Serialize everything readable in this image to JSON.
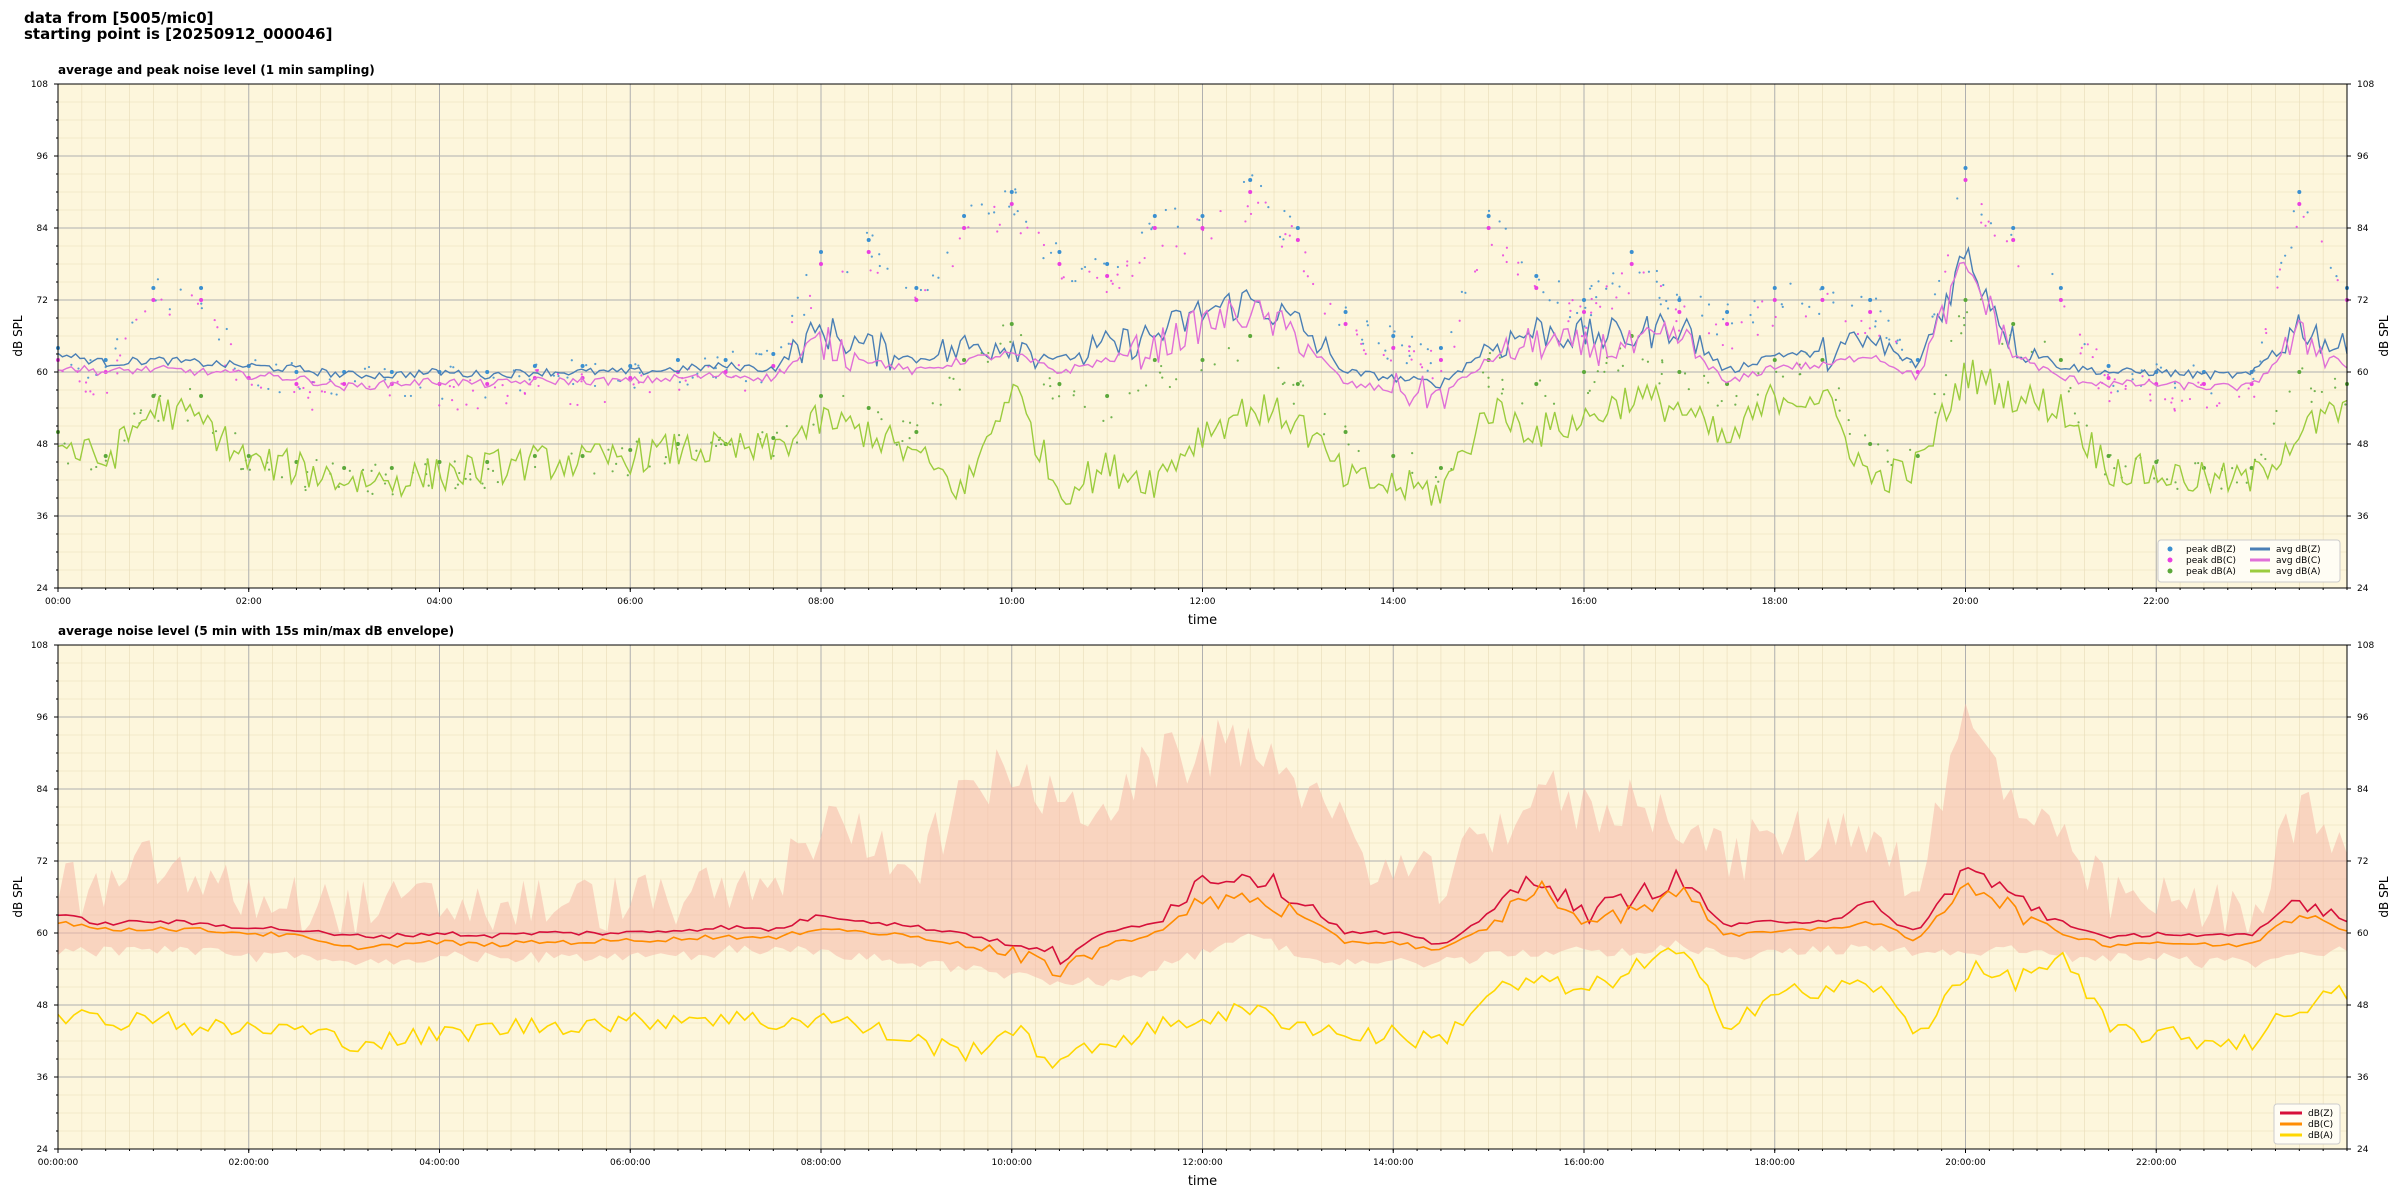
{
  "header": {
    "line1": "data from [5005/mic0]",
    "line2": "starting point is [20250912_000046]"
  },
  "colors": {
    "background": "#fdf6dc",
    "peak_z": "#3a8fd0",
    "peak_c": "#ea3fe0",
    "peak_a": "#5ba83a",
    "avg_z": "#4a7fb5",
    "avg_c": "#e070d8",
    "avg_a": "#9bcc3e",
    "z_5min": "#d6103a",
    "c_5min": "#ff8c00",
    "a_5min": "#ffd700",
    "envelope": "#f5b8a8"
  },
  "chart_data": [
    {
      "type": "line",
      "title": "average and peak noise level (1 min sampling)",
      "xlabel": "time",
      "ylabel": "dB SPL",
      "ylim": [
        24,
        108
      ],
      "yticks": [
        24,
        36,
        48,
        60,
        72,
        84,
        96,
        108
      ],
      "xlim_hours": [
        0,
        24
      ],
      "xticks": [
        "00:00",
        "02:00",
        "04:00",
        "06:00",
        "08:00",
        "10:00",
        "12:00",
        "14:00",
        "16:00",
        "18:00",
        "20:00",
        "22:00"
      ],
      "grid": true,
      "legend_position": "bottom-right",
      "x_hours": [
        0,
        0.5,
        1,
        1.5,
        2,
        2.5,
        3,
        3.5,
        4,
        4.5,
        5,
        5.5,
        6,
        6.5,
        7,
        7.5,
        8,
        8.5,
        9,
        9.5,
        10,
        10.5,
        11,
        11.5,
        12,
        12.5,
        13,
        13.5,
        14,
        14.5,
        15,
        15.5,
        16,
        16.5,
        17,
        17.5,
        18,
        18.5,
        19,
        19.5,
        20,
        20.5,
        21,
        21.5,
        22,
        22.5,
        23,
        23.5,
        24
      ],
      "series": [
        {
          "name": "peak dB(Z)",
          "kind": "scatter",
          "values": [
            64,
            62,
            74,
            74,
            61,
            60,
            60,
            60,
            60,
            60,
            61,
            61,
            61,
            62,
            62,
            63,
            80,
            82,
            74,
            86,
            90,
            80,
            78,
            86,
            86,
            92,
            84,
            70,
            66,
            64,
            86,
            76,
            72,
            80,
            72,
            70,
            74,
            74,
            72,
            62,
            94,
            84,
            74,
            61,
            60,
            60,
            60,
            90,
            74
          ]
        },
        {
          "name": "peak dB(C)",
          "kind": "scatter",
          "values": [
            62,
            60,
            72,
            72,
            59,
            58,
            58,
            58,
            58,
            58,
            59,
            59,
            59,
            60,
            60,
            61,
            78,
            80,
            72,
            84,
            88,
            78,
            76,
            84,
            84,
            90,
            82,
            68,
            64,
            62,
            84,
            74,
            70,
            78,
            70,
            68,
            72,
            72,
            70,
            60,
            92,
            82,
            72,
            59,
            58,
            58,
            58,
            88,
            72
          ]
        },
        {
          "name": "peak dB(A)",
          "kind": "scatter",
          "values": [
            50,
            46,
            56,
            56,
            46,
            45,
            44,
            44,
            45,
            45,
            46,
            46,
            47,
            48,
            48,
            49,
            56,
            54,
            50,
            62,
            68,
            58,
            56,
            62,
            62,
            66,
            58,
            50,
            46,
            44,
            62,
            58,
            60,
            66,
            60,
            58,
            62,
            62,
            48,
            46,
            72,
            68,
            62,
            46,
            45,
            44,
            44,
            60,
            58
          ]
        },
        {
          "name": "avg dB(Z)",
          "kind": "line",
          "values": [
            63,
            61.5,
            62,
            61.5,
            61,
            60.5,
            59.5,
            59.5,
            60,
            59.5,
            60,
            60,
            60,
            60.5,
            61,
            60.5,
            67,
            64,
            62,
            64,
            65,
            62,
            64,
            66,
            70,
            72,
            68,
            60,
            59,
            58,
            64,
            67,
            66,
            66,
            68,
            60,
            63,
            63,
            65,
            61,
            80,
            65,
            61,
            60,
            60,
            59.5,
            59.5,
            68,
            63
          ]
        },
        {
          "name": "avg dB(C)",
          "kind": "line",
          "values": [
            61,
            60,
            60.5,
            60,
            59.5,
            59,
            57.5,
            58,
            58.5,
            58,
            58.5,
            58.5,
            58.5,
            59,
            59.5,
            59,
            65,
            62,
            60,
            62,
            63,
            60,
            62,
            64,
            68,
            70,
            66,
            58,
            57,
            56,
            62,
            65,
            64,
            64,
            66,
            58,
            61,
            61,
            63,
            59,
            78,
            63,
            59,
            58,
            58,
            57.5,
            57.5,
            66,
            61
          ]
        },
        {
          "name": "avg dB(A)",
          "kind": "line",
          "values": [
            48,
            45,
            54,
            52,
            45,
            44,
            42,
            42,
            43,
            44,
            45,
            45,
            46,
            47,
            47,
            47,
            52,
            50,
            46,
            40,
            58,
            40,
            44,
            42,
            50,
            54,
            52,
            42,
            41,
            40,
            54,
            50,
            52,
            56,
            54,
            48,
            56,
            56,
            42,
            44,
            60,
            56,
            54,
            44,
            43,
            42,
            42,
            50,
            54
          ]
        }
      ],
      "legend": [
        "peak dB(Z)",
        "peak dB(C)",
        "peak dB(A)",
        "avg dB(Z)",
        "avg dB(C)",
        "avg dB(A)"
      ]
    },
    {
      "type": "line",
      "title": "average noise level (5 min with 15s min/max dB envelope)",
      "xlabel": "time",
      "ylabel": "dB SPL",
      "ylim": [
        24,
        108
      ],
      "yticks": [
        24,
        36,
        48,
        60,
        72,
        84,
        96,
        108
      ],
      "xlim_hours": [
        0,
        24
      ],
      "xticks": [
        "00:00:00",
        "02:00:00",
        "04:00:00",
        "06:00:00",
        "08:00:00",
        "10:00:00",
        "12:00:00",
        "14:00:00",
        "16:00:00",
        "18:00:00",
        "20:00:00",
        "22:00:00"
      ],
      "grid": true,
      "legend_position": "bottom-right",
      "x_hours": [
        0,
        0.5,
        1,
        1.5,
        2,
        2.5,
        3,
        3.5,
        4,
        4.5,
        5,
        5.5,
        6,
        6.5,
        7,
        7.5,
        8,
        8.5,
        9,
        9.5,
        10,
        10.5,
        11,
        11.5,
        12,
        12.5,
        13,
        13.5,
        14,
        14.5,
        15,
        15.5,
        16,
        16.5,
        17,
        17.5,
        18,
        18.5,
        19,
        19.5,
        20,
        20.5,
        21,
        21.5,
        22,
        22.5,
        23,
        23.5,
        24
      ],
      "envelope": {
        "min": [
          58,
          58,
          58,
          58,
          57,
          57,
          56,
          56,
          57,
          57,
          57,
          57,
          57,
          57,
          58,
          58,
          58,
          57,
          56,
          55,
          54,
          53,
          53,
          55,
          58,
          60,
          58,
          56,
          56,
          56,
          57,
          58,
          58,
          58,
          59,
          57,
          58,
          58,
          59,
          58,
          58,
          58,
          57,
          57,
          57,
          56,
          56,
          57,
          58
        ],
        "max": [
          66,
          64,
          70,
          66,
          64,
          63,
          62,
          62,
          63,
          62,
          63,
          63,
          63,
          64,
          64,
          66,
          76,
          74,
          70,
          80,
          86,
          78,
          80,
          86,
          88,
          90,
          84,
          74,
          68,
          66,
          74,
          82,
          78,
          80,
          78,
          70,
          74,
          74,
          76,
          66,
          94,
          80,
          72,
          64,
          63,
          62,
          62,
          78,
          72
        ]
      },
      "series": [
        {
          "name": "dB(Z)",
          "values": [
            63,
            61.5,
            62,
            61.5,
            61,
            60.5,
            59.5,
            59.5,
            60,
            59.5,
            60,
            60,
            60,
            60.5,
            61,
            60.5,
            63,
            62,
            61,
            60,
            58,
            56,
            60,
            62,
            69,
            70,
            66,
            60,
            60,
            58,
            63,
            70,
            63,
            66,
            69,
            61,
            62,
            62,
            64,
            60,
            71,
            66,
            62,
            59,
            60,
            59.5,
            59.5,
            66,
            62
          ]
        },
        {
          "name": "dB(C)",
          "values": [
            62,
            60.5,
            60.8,
            60.5,
            60,
            59.5,
            57.5,
            58,
            58.5,
            58,
            58.5,
            58.5,
            58.8,
            59,
            59.5,
            59,
            61,
            60,
            59.5,
            58,
            56,
            54,
            58,
            60,
            65,
            66,
            63,
            58.5,
            58.5,
            57,
            61,
            68,
            61.5,
            64,
            67,
            59.5,
            60.5,
            60.5,
            62,
            58.5,
            69,
            64,
            60,
            58,
            58.5,
            58,
            58,
            64,
            60.5
          ]
        },
        {
          "name": "dB(A)",
          "values": [
            47,
            45,
            46.5,
            44,
            44,
            44,
            42,
            42,
            43,
            44,
            44.5,
            45,
            45,
            46,
            46,
            45,
            46,
            44,
            42,
            40,
            44,
            38,
            42,
            44,
            46,
            47,
            45,
            43,
            43,
            42,
            50,
            52,
            50,
            54,
            57,
            45,
            50,
            50,
            52,
            43,
            54,
            52,
            56,
            44,
            43,
            42,
            42,
            48,
            50
          ]
        }
      ],
      "legend": [
        "dB(Z)",
        "dB(C)",
        "dB(A)"
      ]
    }
  ]
}
